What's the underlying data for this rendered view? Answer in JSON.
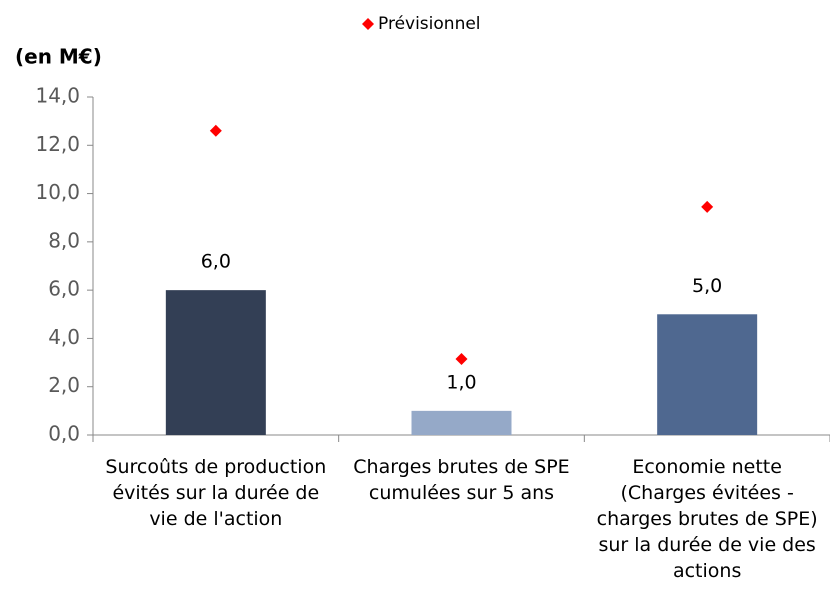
{
  "chart_data": {
    "type": "bar",
    "y_axis_label": "(en M€)",
    "categories": [
      "Surcoûts de production évités sur la durée de vie de l'action",
      "Charges brutes de SPE cumulées sur 5 ans",
      "Economie nette (Charges évitées - charges brutes  de SPE) sur la durée de vie des actions"
    ],
    "values": [
      6.0,
      1.0,
      5.0
    ],
    "value_labels": [
      "6,0",
      "1,0",
      "5,0"
    ],
    "colors": [
      "#333f55",
      "#95a9c8",
      "#4f6890"
    ],
    "series": [
      {
        "name": "Prévisionnel",
        "type": "scatter",
        "color": "#ff0000",
        "values": [
          12.6,
          3.15,
          9.45
        ]
      }
    ],
    "ylim": [
      0,
      14
    ],
    "yticks": [
      {
        "value": 0,
        "label": "0,0"
      },
      {
        "value": 2,
        "label": "2,0"
      },
      {
        "value": 4,
        "label": "4,0"
      },
      {
        "value": 6,
        "label": "6,0"
      },
      {
        "value": 8,
        "label": "8,0"
      },
      {
        "value": 10,
        "label": "10,0"
      },
      {
        "value": 12,
        "label": "12,0"
      },
      {
        "value": 14,
        "label": "14,0"
      }
    ],
    "legend": "top"
  }
}
